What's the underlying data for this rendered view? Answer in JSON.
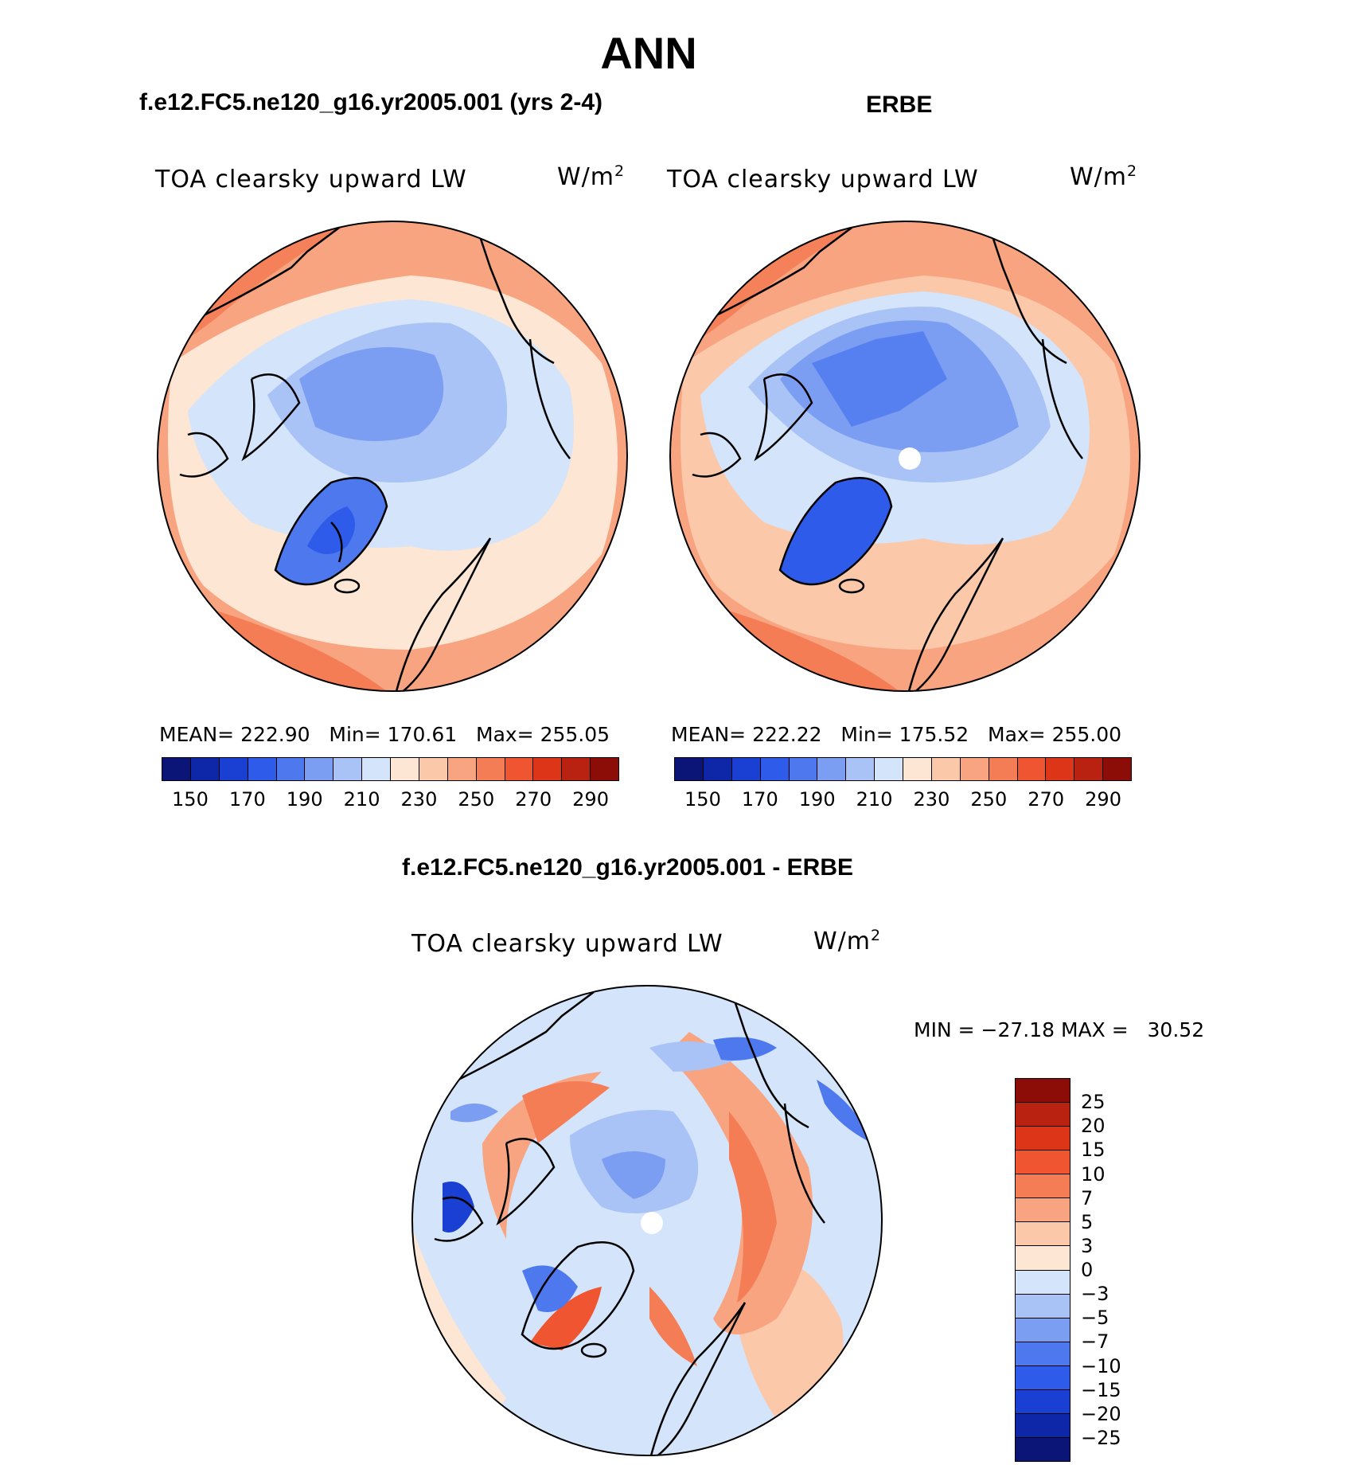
{
  "figure": {
    "season": "ANN",
    "case_title": "f.e12.FC5.ne120_g16.yr2005.001 (yrs 2-4)",
    "obs_title": "ERBE",
    "diff_title": "f.e12.FC5.ne120_g16.yr2005.001 - ERBE"
  },
  "panels": {
    "model": {
      "variable": "TOA clearsky upward LW",
      "units_base": "W/m",
      "units_exp": "2",
      "mean_label": "MEAN=",
      "mean": "222.90",
      "min_label": "Min=",
      "min": "170.61",
      "max_label": "Max=",
      "max": "255.05"
    },
    "obs": {
      "variable": "TOA clearsky upward LW",
      "units_base": "W/m",
      "units_exp": "2",
      "mean_label": "MEAN=",
      "mean": "222.22",
      "min_label": "Min=",
      "min": "175.52",
      "max_label": "Max=",
      "max": "255.00"
    },
    "diff": {
      "variable": "TOA clearsky upward LW",
      "units_base": "W/m",
      "units_exp": "2",
      "min_label": "MIN =",
      "min": "−27.18",
      "max_label": "MAX =",
      "max": "30.52"
    }
  },
  "colorbars": {
    "abs": {
      "tick_labels": [
        "150",
        "170",
        "190",
        "210",
        "230",
        "250",
        "270",
        "290"
      ],
      "colors": [
        "#0b1477",
        "#0e27a8",
        "#1a3fd3",
        "#2e5bea",
        "#4d78ee",
        "#7b9ef2",
        "#a9c3f6",
        "#d4e4fa",
        "#fde6d3",
        "#fbc8aa",
        "#f8a480",
        "#f47d55",
        "#ee5530",
        "#dd3517",
        "#b92111",
        "#8c0c08"
      ]
    },
    "diff": {
      "tick_labels": [
        "25",
        "20",
        "15",
        "10",
        "7",
        "5",
        "3",
        "0",
        "−3",
        "−5",
        "−7",
        "−10",
        "−15",
        "−20",
        "−25"
      ],
      "colors": [
        "#8c0c08",
        "#b92111",
        "#dd3517",
        "#ee5530",
        "#f47d55",
        "#f8a480",
        "#fbc8aa",
        "#fde6d3",
        "#d4e4fa",
        "#a9c3f6",
        "#7b9ef2",
        "#4d78ee",
        "#2e5bea",
        "#1a3fd3",
        "#0e27a8",
        "#0b1477"
      ]
    }
  }
}
